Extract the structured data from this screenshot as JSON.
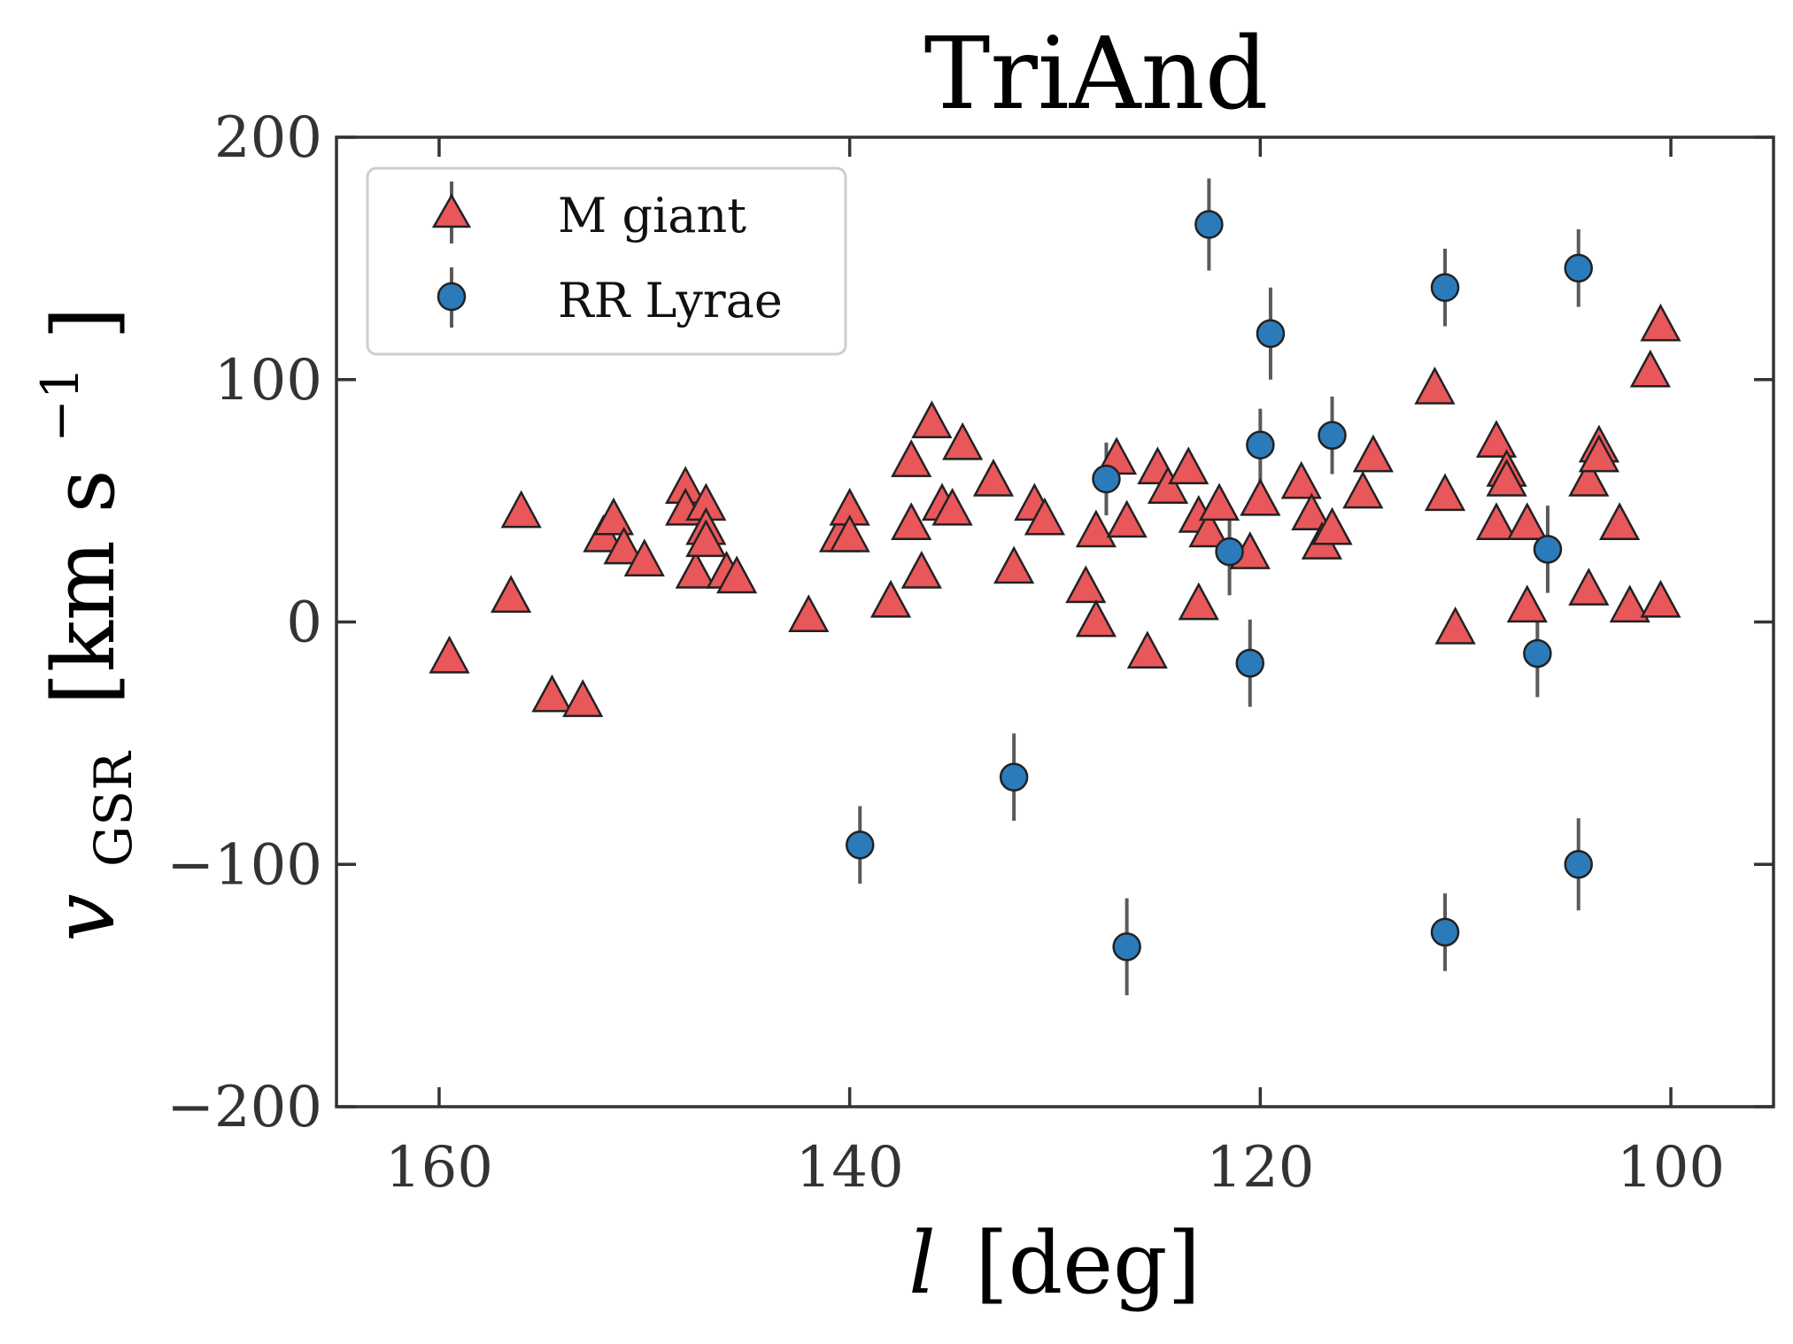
{
  "chart_data": {
    "type": "scatter",
    "title": "TriAnd",
    "xlabel": "l [deg]",
    "xlabel_parts": {
      "symbol": "l",
      "unit": "[deg]"
    },
    "ylabel": "vGSR [km s−1]",
    "ylabel_parts": {
      "symbol": "v",
      "subscript": "GSR",
      "unit": "[km s",
      "exponent": "−1",
      "close": "]"
    },
    "xlim": [
      165,
      95
    ],
    "ylim": [
      -200,
      200
    ],
    "x_inverted": true,
    "xticks": [
      160,
      140,
      120,
      100
    ],
    "xtick_labels": [
      "160",
      "140",
      "120",
      "100"
    ],
    "yticks": [
      -200,
      -100,
      0,
      100,
      200
    ],
    "ytick_labels": [
      "−200",
      "−100",
      "0",
      "100",
      "200"
    ],
    "grid": false,
    "legend_position": "top-left",
    "colors": {
      "m_giant_fill": "#e8575a",
      "rr_lyrae_fill": "#2b7bba",
      "marker_edge": "#222222",
      "error_bar": "#5a5a5a",
      "axis": "#333333"
    },
    "series": [
      {
        "name": "M giant",
        "marker": "triangle",
        "points": [
          {
            "x": 159.5,
            "y": -15
          },
          {
            "x": 156.5,
            "y": 10
          },
          {
            "x": 156,
            "y": 45
          },
          {
            "x": 154.5,
            "y": -31
          },
          {
            "x": 153,
            "y": -33
          },
          {
            "x": 152,
            "y": 35
          },
          {
            "x": 151.5,
            "y": 42
          },
          {
            "x": 151,
            "y": 30
          },
          {
            "x": 150,
            "y": 25
          },
          {
            "x": 148,
            "y": 55
          },
          {
            "x": 148,
            "y": 46
          },
          {
            "x": 147.5,
            "y": 20
          },
          {
            "x": 147,
            "y": 48
          },
          {
            "x": 147,
            "y": 38
          },
          {
            "x": 147,
            "y": 33
          },
          {
            "x": 146,
            "y": 20
          },
          {
            "x": 145.5,
            "y": 18
          },
          {
            "x": 142,
            "y": 2
          },
          {
            "x": 140.5,
            "y": 35
          },
          {
            "x": 140,
            "y": 46
          },
          {
            "x": 140,
            "y": 35
          },
          {
            "x": 138,
            "y": 8
          },
          {
            "x": 137,
            "y": 66
          },
          {
            "x": 137,
            "y": 40
          },
          {
            "x": 136.5,
            "y": 20
          },
          {
            "x": 136,
            "y": 82
          },
          {
            "x": 135.5,
            "y": 48
          },
          {
            "x": 135,
            "y": 46
          },
          {
            "x": 134.5,
            "y": 73
          },
          {
            "x": 133,
            "y": 58
          },
          {
            "x": 132,
            "y": 22
          },
          {
            "x": 131,
            "y": 48
          },
          {
            "x": 130.5,
            "y": 42
          },
          {
            "x": 128.5,
            "y": 14
          },
          {
            "x": 128,
            "y": 0
          },
          {
            "x": 128,
            "y": 37
          },
          {
            "x": 127,
            "y": 67
          },
          {
            "x": 126.5,
            "y": 41
          },
          {
            "x": 125.5,
            "y": -13
          },
          {
            "x": 125,
            "y": 63
          },
          {
            "x": 124.5,
            "y": 55
          },
          {
            "x": 123.5,
            "y": 63
          },
          {
            "x": 123,
            "y": 43
          },
          {
            "x": 123,
            "y": 7
          },
          {
            "x": 122.5,
            "y": 37
          },
          {
            "x": 122,
            "y": 48
          },
          {
            "x": 120.5,
            "y": 28
          },
          {
            "x": 120,
            "y": 50
          },
          {
            "x": 118,
            "y": 57
          },
          {
            "x": 117.5,
            "y": 44
          },
          {
            "x": 117,
            "y": 32
          },
          {
            "x": 116.5,
            "y": 38
          },
          {
            "x": 115,
            "y": 53
          },
          {
            "x": 114.5,
            "y": 68
          },
          {
            "x": 111.5,
            "y": 96
          },
          {
            "x": 111,
            "y": 52
          },
          {
            "x": 110.5,
            "y": -3
          },
          {
            "x": 108.5,
            "y": 74
          },
          {
            "x": 108.5,
            "y": 40
          },
          {
            "x": 108,
            "y": 62
          },
          {
            "x": 108,
            "y": 58
          },
          {
            "x": 107,
            "y": 6
          },
          {
            "x": 107,
            "y": 40
          },
          {
            "x": 104,
            "y": 58
          },
          {
            "x": 104,
            "y": 13
          },
          {
            "x": 103.5,
            "y": 72
          },
          {
            "x": 103.5,
            "y": 68
          },
          {
            "x": 102.5,
            "y": 40
          },
          {
            "x": 102,
            "y": 6
          },
          {
            "x": 101,
            "y": 103
          },
          {
            "x": 100.5,
            "y": 122
          },
          {
            "x": 100.5,
            "y": 8
          }
        ]
      },
      {
        "name": "RR Lyrae",
        "marker": "circle",
        "points": [
          {
            "x": 139.5,
            "y": -92,
            "yerr": 16
          },
          {
            "x": 132,
            "y": -64,
            "yerr": 18
          },
          {
            "x": 127.5,
            "y": 59,
            "yerr": 15
          },
          {
            "x": 126.5,
            "y": -134,
            "yerr": 20
          },
          {
            "x": 122.5,
            "y": 164,
            "yerr": 19
          },
          {
            "x": 121.5,
            "y": 29,
            "yerr": 18
          },
          {
            "x": 120.5,
            "y": -17,
            "yerr": 18
          },
          {
            "x": 120,
            "y": 73,
            "yerr": 15
          },
          {
            "x": 119.5,
            "y": 119,
            "yerr": 19
          },
          {
            "x": 116.5,
            "y": 77,
            "yerr": 16
          },
          {
            "x": 111,
            "y": 138,
            "yerr": 16
          },
          {
            "x": 111,
            "y": -128,
            "yerr": 16
          },
          {
            "x": 106.5,
            "y": -13,
            "yerr": 18
          },
          {
            "x": 106,
            "y": 30,
            "yerr": 18
          },
          {
            "x": 104.5,
            "y": 146,
            "yerr": 16
          },
          {
            "x": 104.5,
            "y": -100,
            "yerr": 19
          }
        ]
      }
    ]
  }
}
